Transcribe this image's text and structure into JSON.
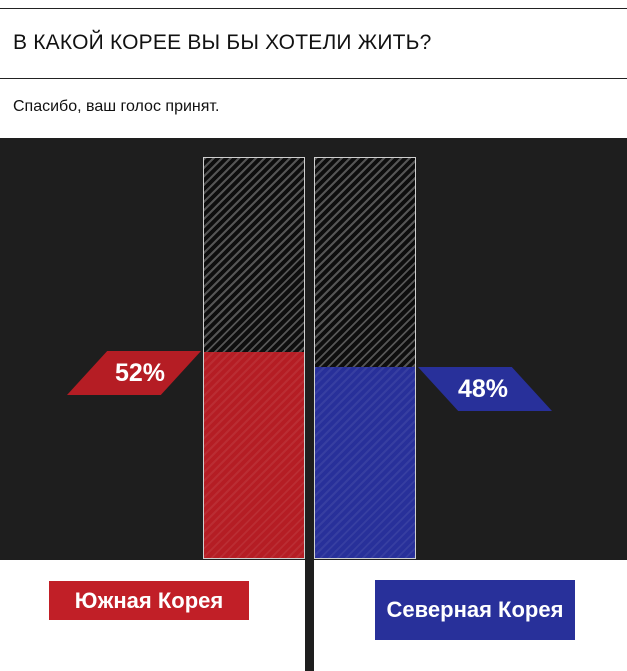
{
  "poll": {
    "question": "В КАКОЙ КОРЕЕ ВЫ БЫ ХОТЕЛИ ЖИТЬ?",
    "status": "Спасибо, ваш голос принят.",
    "options": [
      {
        "label": "Южная Корея",
        "percent_label": "52%",
        "percent": 52,
        "color": "#b51d24"
      },
      {
        "label": "Северная Корея",
        "percent_label": "48%",
        "percent": 48,
        "color": "#28309a"
      }
    ]
  }
}
